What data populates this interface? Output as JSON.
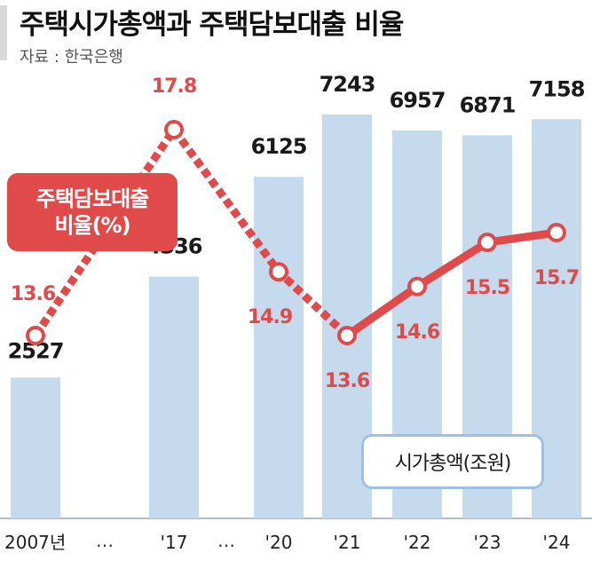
{
  "title": "주택시가총액과 주택담보대출 비율",
  "source": "자료 : 한국은행",
  "chart_data": {
    "type": "bar",
    "categories": [
      "2007년",
      "'17",
      "'20",
      "'21",
      "'22",
      "'23",
      "'24"
    ],
    "gap_markers": [
      "…",
      "…"
    ],
    "series": [
      {
        "name": "시가총액(조원)",
        "type": "bar",
        "color": "#c5daec",
        "values": [
          2527,
          4336,
          6125,
          7243,
          6957,
          6871,
          7158
        ]
      },
      {
        "name": "주택담보대출 비율(%)",
        "type": "line",
        "color": "#e04a4a",
        "values": [
          13.6,
          17.8,
          14.9,
          13.6,
          14.6,
          15.5,
          15.7
        ]
      }
    ],
    "legend": {
      "line_lines": [
        "주택담보대출",
        "비율(%)"
      ],
      "bar": "시가총액(조원)"
    },
    "grid": false
  }
}
